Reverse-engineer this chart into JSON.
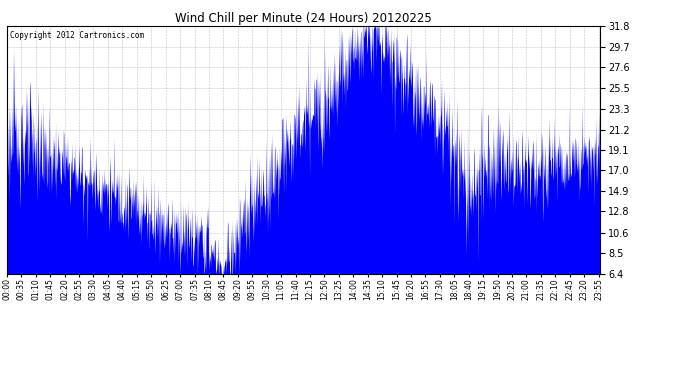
{
  "title": "Wind Chill per Minute (24 Hours) 20120225",
  "copyright": "Copyright 2012 Cartronics.com",
  "line_color": "#0000FF",
  "fill_color": "#0000FF",
  "bg_color": "#FFFFFF",
  "plot_bg_color": "#FFFFFF",
  "grid_color": "#BBBBBB",
  "yticks": [
    6.4,
    8.5,
    10.6,
    12.8,
    14.9,
    17.0,
    19.1,
    21.2,
    23.3,
    25.5,
    27.6,
    29.7,
    31.8
  ],
  "ylim": [
    6.4,
    31.8
  ],
  "xlim": [
    0,
    1439
  ],
  "xtick_labels": [
    "00:00",
    "00:35",
    "01:10",
    "01:45",
    "02:20",
    "02:55",
    "03:30",
    "04:05",
    "04:40",
    "05:15",
    "05:50",
    "06:25",
    "07:00",
    "07:35",
    "08:10",
    "08:45",
    "09:20",
    "09:55",
    "10:30",
    "11:05",
    "11:40",
    "12:15",
    "12:50",
    "13:25",
    "14:00",
    "14:35",
    "15:10",
    "15:45",
    "16:20",
    "16:55",
    "17:30",
    "18:05",
    "18:40",
    "19:15",
    "19:50",
    "20:25",
    "21:00",
    "21:35",
    "22:10",
    "22:45",
    "23:20",
    "23:55"
  ],
  "xtick_positions": [
    0,
    35,
    70,
    105,
    140,
    175,
    210,
    245,
    280,
    315,
    350,
    385,
    420,
    455,
    490,
    525,
    560,
    595,
    630,
    665,
    700,
    735,
    770,
    805,
    840,
    875,
    910,
    945,
    980,
    1015,
    1050,
    1085,
    1120,
    1155,
    1190,
    1225,
    1260,
    1295,
    1330,
    1365,
    1400,
    1435
  ],
  "figsize": [
    6.9,
    3.75
  ],
  "dpi": 100
}
